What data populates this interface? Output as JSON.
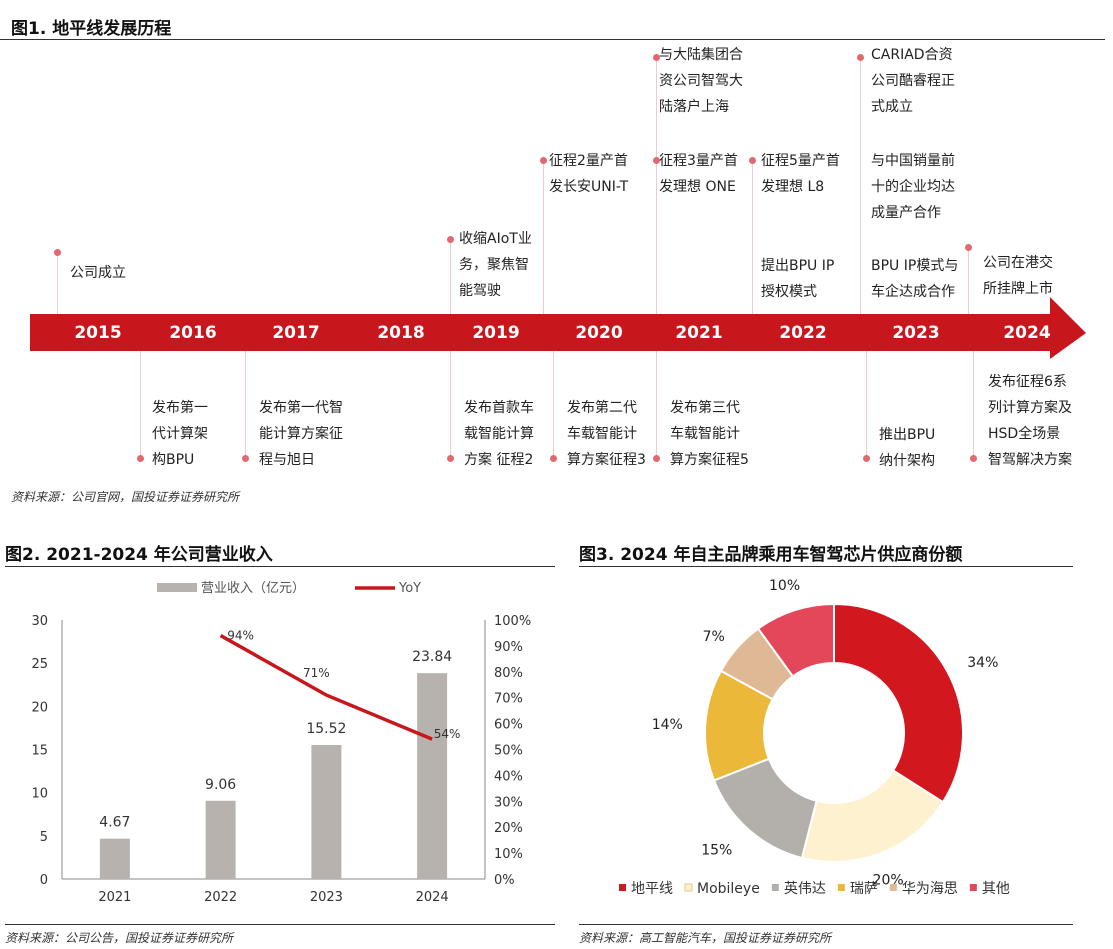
{
  "fig1": {
    "title": "图1. 地平线发展历程",
    "source": "资料来源：公司官网，国投证券证券研究所",
    "years": [
      "2015",
      "2016",
      "2017",
      "2018",
      "2019",
      "2020",
      "2021",
      "2022",
      "2023",
      "2024"
    ],
    "above": [
      {
        "text": "公司成立"
      },
      {
        "text": "收缩AIoT业\n务，聚焦智\n能驾驶"
      },
      {
        "text": "征程2量产首\n发长安UNI-T"
      },
      {
        "text": "与大陆集团合\n资公司智驾大\n陆落户上海"
      },
      {
        "text": "征程3量产首\n发理想 ONE"
      },
      {
        "text": "征程5量产首\n发理想 L8"
      },
      {
        "text": "提出BPU IP\n授权模式"
      },
      {
        "text": "CARIAD合资\n公司酷睿程正\n式成立"
      },
      {
        "text": "与中国销量前\n十的企业均达\n成量产合作"
      },
      {
        "text": "BPU IP模式与\n车企达成合作"
      },
      {
        "text": "公司在港交\n所挂牌上市"
      }
    ],
    "below": [
      {
        "text": "发布第一\n代计算架\n构BPU"
      },
      {
        "text": "发布第一代智\n能计算方案征\n程与旭日"
      },
      {
        "text": "发布首款车\n载智能计算\n方案 征程2"
      },
      {
        "text": "发布第二代\n车载智能计\n算方案征程3"
      },
      {
        "text": "发布第三代\n车载智能计\n算方案征程5"
      },
      {
        "text": "推出BPU\n纳什架构"
      },
      {
        "text": "发布征程6系\n列计算方案及\nHSD全场景\n智驾解决方案"
      }
    ]
  },
  "fig2": {
    "title": "图2. 2021-2024 年公司营业收入",
    "source": "资料来源：公司公告，国投证券证券研究所"
  },
  "fig3": {
    "title": "图3. 2024 年自主品牌乘用车智驾芯片供应商份额",
    "source": "资料来源：高工智能汽车，国投证券证券研究所"
  },
  "colors": {
    "accent_red": "#c8161d",
    "bar_gray": "#b7b2ae",
    "pie": [
      "#d3171f",
      "#fdf1cf",
      "#b3afab",
      "#ebb83a",
      "#dfb995",
      "#e3485a"
    ]
  },
  "chart_data": [
    {
      "type": "bar",
      "categories": [
        "2021",
        "2022",
        "2023",
        "2024"
      ],
      "series": [
        {
          "name": "营业收入（亿元）",
          "values": [
            4.67,
            9.06,
            15.52,
            23.84
          ],
          "labels": [
            "4.67",
            "9.06",
            "15.52",
            "23.84"
          ]
        },
        {
          "name": "YoY",
          "type": "line",
          "axis": "right",
          "values": [
            null,
            94,
            71,
            54
          ],
          "labels": [
            "",
            "94%",
            "71%",
            "54%"
          ]
        }
      ],
      "ylim": [
        0,
        30
      ],
      "yticks": [
        "0",
        "5",
        "10",
        "15",
        "20",
        "25",
        "30"
      ],
      "y2lim": [
        0,
        100
      ],
      "y2ticks": [
        "0%",
        "10%",
        "20%",
        "30%",
        "40%",
        "50%",
        "60%",
        "70%",
        "80%",
        "90%",
        "100%"
      ],
      "legend": "top"
    },
    {
      "type": "pie",
      "categories": [
        "地平线",
        "Mobileye",
        "英伟达",
        "瑞萨",
        "华为海思",
        "其他"
      ],
      "values": [
        34,
        20,
        15,
        14,
        7,
        10
      ],
      "labels": [
        "34%",
        "20%",
        "15%",
        "14%",
        "7%",
        "10%"
      ],
      "legend": "bottom"
    }
  ]
}
